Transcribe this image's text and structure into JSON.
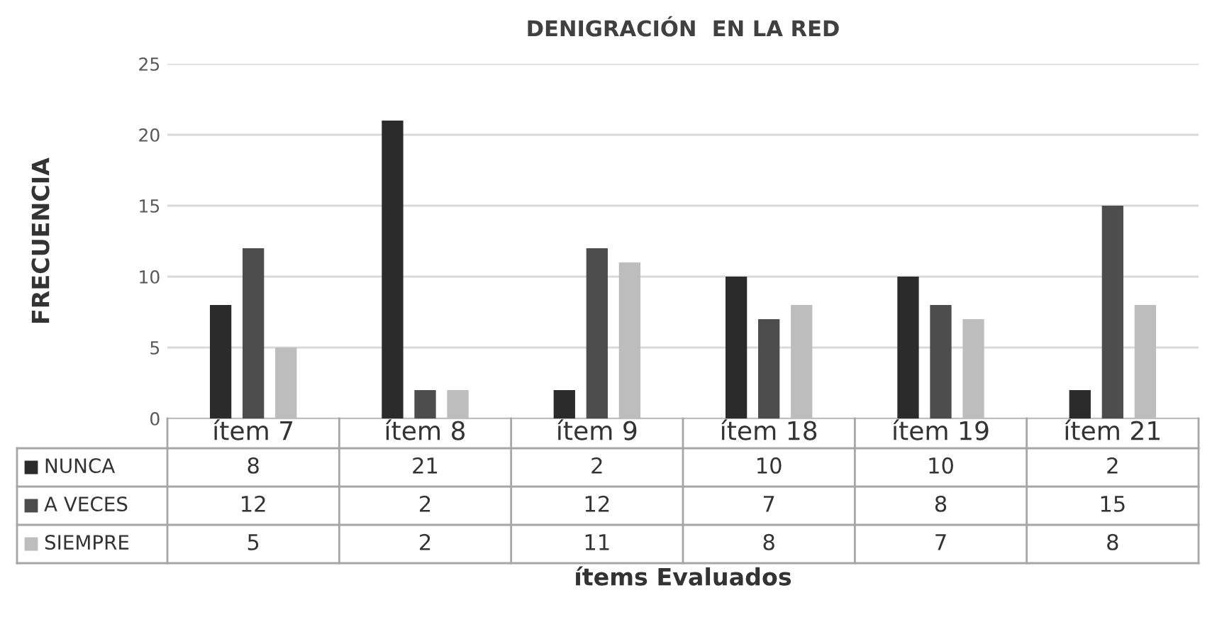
{
  "chart_data": {
    "type": "bar",
    "title": "DENIGRACIÓN  EN LA RED",
    "annotations": [
      "ítems Evaluados"
    ],
    "ylabel": "FRECUENCIA",
    "categories": [
      "ítem 7",
      "ítem 8",
      "ítem 9",
      "ítem 18",
      "ítem 19",
      "ítem 21"
    ],
    "series": [
      {
        "name": "NUNCA",
        "color": "#2b2b2b",
        "values": [
          8,
          21,
          2,
          10,
          10,
          2
        ]
      },
      {
        "name": "A VECES",
        "color": "#4d4d4d",
        "values": [
          12,
          2,
          12,
          7,
          8,
          15
        ]
      },
      {
        "name": "SIEMPRE",
        "color": "#bdbdbd",
        "values": [
          5,
          2,
          11,
          8,
          7,
          8
        ]
      }
    ],
    "ylim": [
      0,
      25
    ],
    "yticks": [
      0,
      5,
      10,
      15,
      20,
      25
    ],
    "grid": "y",
    "data_labels": true,
    "legend": "bottom"
  }
}
